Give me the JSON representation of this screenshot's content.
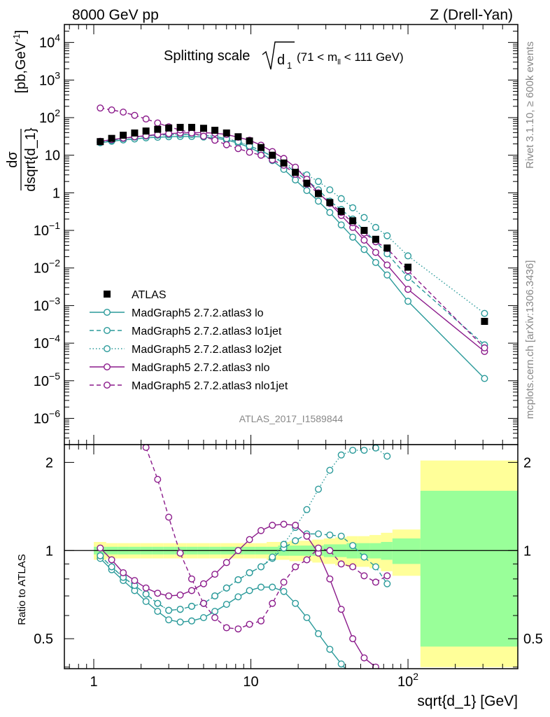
{
  "header": {
    "left": "8000 GeV pp",
    "right": "Z (Drell-Yan)"
  },
  "side_labels": {
    "rivet": "Rivet 3.1.10, ≥ 600k events",
    "mcplots": "mcplots.cern.ch [arXiv:1306.3436]"
  },
  "colors": {
    "teal": "#2a9a9a",
    "purple": "#8b1a8b",
    "data": "#000000",
    "band_yellow": "#ffff99",
    "band_green": "#99ff99",
    "watermark": "#999999"
  },
  "chart_data": [
    {
      "type": "scatter",
      "panel": "main",
      "title": "Splitting scale",
      "title_sqrt": "d",
      "title_sqrt_sub": "1",
      "title_range": "(71 < m",
      "title_range_sub": "ll",
      "title_range_end": " < 111 GeV)",
      "watermark": "ATLAS_2017_I1589844",
      "ylabel_num": "dσ",
      "ylabel_den": "dsqrt{d_1}",
      "ylabel_unit": "[pb,GeV",
      "ylabel_unit_sup": "-1",
      "ylabel_unit_end": "]",
      "xscale": "log",
      "yscale": "log",
      "xlim": [
        0.65,
        500
      ],
      "ylim": [
        2e-07,
        30000.0
      ],
      "ytick_labels": [
        {
          "base": "10",
          "exp": "4",
          "value": 10000.0
        },
        {
          "base": "10",
          "exp": "3",
          "value": 1000.0
        },
        {
          "base": "10",
          "exp": "2",
          "value": 100.0
        },
        {
          "base": "10",
          "exp": "",
          "value": 10
        },
        {
          "base": "1",
          "exp": "",
          "value": 1
        },
        {
          "base": "10",
          "exp": "−1",
          "value": 0.1
        },
        {
          "base": "10",
          "exp": "−2",
          "value": 0.01
        },
        {
          "base": "10",
          "exp": "−3",
          "value": 0.001
        },
        {
          "base": "10",
          "exp": "−4",
          "value": 0.0001
        },
        {
          "base": "10",
          "exp": "−5",
          "value": 1e-05
        },
        {
          "base": "10",
          "exp": "−6",
          "value": 1e-06
        }
      ],
      "legend_placement": "lower-left",
      "series": [
        {
          "name": "ATLAS",
          "style": "data",
          "x": [
            1.1,
            1.3,
            1.54,
            1.82,
            2.15,
            2.55,
            3.0,
            3.55,
            4.2,
            5.0,
            5.9,
            7.0,
            8.3,
            9.8,
            11.6,
            13.7,
            16.2,
            19.2,
            22.7,
            26.9,
            31.8,
            37.6,
            44.5,
            52.6,
            62.3,
            73.7,
            100,
            307
          ],
          "y": [
            23,
            28,
            34,
            39,
            44,
            49,
            53,
            55,
            55,
            52,
            46,
            39,
            31,
            24,
            16,
            10,
            6.2,
            3.5,
            1.8,
            0.95,
            0.55,
            0.32,
            0.18,
            0.1,
            0.058,
            0.034,
            0.0105,
            0.00038
          ]
        },
        {
          "name": "MadGraph5 2.7.2.atlas3 lo",
          "style": "solid",
          "color": "teal",
          "x": [
            1.1,
            1.3,
            1.54,
            1.82,
            2.15,
            2.55,
            3.0,
            3.55,
            4.2,
            5.0,
            5.9,
            7.0,
            8.3,
            9.8,
            11.6,
            13.7,
            16.2,
            19.2,
            22.7,
            26.9,
            31.8,
            37.6,
            44.5,
            52.6,
            62.3,
            73.7,
            100,
            307
          ],
          "y": [
            21.5,
            23.5,
            25.5,
            27,
            29,
            30,
            31,
            31.5,
            31.5,
            30.5,
            28.5,
            25.5,
            21,
            16,
            11.5,
            7.2,
            4.2,
            2.2,
            1.15,
            0.6,
            0.3,
            0.14,
            0.066,
            0.031,
            0.014,
            0.0065,
            0.0013,
            1.15e-05
          ]
        },
        {
          "name": "MadGraph5 2.7.2.atlas3 lo1jet",
          "style": "dashed",
          "color": "teal",
          "x": [
            1.1,
            1.3,
            1.54,
            1.82,
            2.15,
            2.55,
            3.0,
            3.55,
            4.2,
            5.0,
            5.9,
            7.0,
            8.3,
            9.8,
            11.6,
            13.7,
            16.2,
            19.2,
            22.7,
            26.9,
            31.8,
            37.6,
            44.5,
            52.6,
            62.3,
            73.7,
            100,
            307
          ],
          "y": [
            22,
            25,
            28,
            30.5,
            32.5,
            34,
            35,
            35.5,
            35.5,
            34,
            31.5,
            27.5,
            23,
            17.5,
            13.5,
            9,
            6.2,
            3.5,
            2.2,
            1.2,
            0.6,
            0.36,
            0.2,
            0.1,
            0.05,
            0.024,
            0.0056,
            9e-05
          ]
        },
        {
          "name": "MadGraph5 2.7.2.atlas3 lo2jet",
          "style": "dotted",
          "color": "teal",
          "x": [
            1.1,
            1.3,
            1.54,
            1.82,
            2.15,
            2.55,
            3.0,
            3.55,
            4.2,
            5.0,
            5.9,
            7.0,
            8.3,
            9.8,
            11.6,
            13.7,
            16.2,
            19.2,
            22.7,
            26.9,
            31.8,
            37.6,
            44.5,
            52.6,
            62.3,
            73.7,
            100,
            307
          ],
          "y": [
            22,
            25,
            28,
            30.5,
            32.5,
            34,
            35,
            35.5,
            35.5,
            34,
            31.5,
            27.5,
            23,
            17.5,
            13.5,
            9.5,
            6.5,
            4.2,
            3.0,
            2.0,
            1.2,
            0.7,
            0.4,
            0.22,
            0.12,
            0.072,
            0.021,
            0.00062
          ]
        },
        {
          "name": "MadGraph5 2.7.2.atlas3 nlo",
          "style": "solid",
          "color": "purple",
          "x": [
            1.1,
            1.3,
            1.54,
            1.82,
            2.15,
            2.55,
            3.0,
            3.55,
            4.2,
            5.0,
            5.9,
            7.0,
            8.3,
            9.8,
            11.6,
            13.7,
            16.2,
            19.2,
            22.7,
            26.9,
            31.8,
            37.6,
            44.5,
            52.6,
            62.3,
            73.7,
            100,
            307
          ],
          "y": [
            23.5,
            26,
            28.5,
            31,
            33,
            35.5,
            37.5,
            39,
            40,
            40,
            38.5,
            35.5,
            30,
            25,
            18.5,
            12.5,
            8.2,
            4.8,
            2.3,
            1.0,
            0.52,
            0.25,
            0.12,
            0.055,
            0.026,
            0.012,
            0.0027,
            6e-05
          ]
        },
        {
          "name": "MadGraph5 2.7.2.atlas3 nlo1jet",
          "style": "dashed",
          "color": "purple",
          "x": [
            1.1,
            1.3,
            1.54,
            1.82,
            2.15,
            2.55,
            3.0,
            3.55,
            4.2,
            5.0,
            5.9,
            7.0,
            8.3,
            9.8,
            11.6,
            13.7,
            16.2,
            19.2,
            22.7,
            26.9,
            31.8,
            37.6,
            44.5,
            52.6,
            62.3,
            73.7,
            100,
            307
          ],
          "y": [
            180,
            160,
            140,
            115,
            92,
            72,
            57,
            47,
            39,
            32,
            25,
            19,
            15,
            12,
            10,
            7.5,
            5.4,
            3.1,
            1.7,
            0.97,
            0.55,
            0.3,
            0.16,
            0.085,
            0.05,
            0.033,
            0.0085,
            7.5e-05
          ]
        }
      ]
    },
    {
      "type": "scatter",
      "panel": "ratio",
      "ylabel": "Ratio to ATLAS",
      "xlabel": "sqrt{d_1} [GeV]",
      "xscale": "log",
      "yscale": "log",
      "xlim": [
        0.65,
        500
      ],
      "ylim": [
        0.395,
        2.3
      ],
      "xtick_labels": [
        {
          "base": "1",
          "exp": "",
          "value": 1
        },
        {
          "base": "10",
          "exp": "",
          "value": 10
        },
        {
          "base": "10",
          "exp": "2",
          "value": 100
        }
      ],
      "ytick_labels": [
        {
          "label": "0.5",
          "value": 0.5
        },
        {
          "label": "1",
          "value": 1
        },
        {
          "label": "2",
          "value": 2
        }
      ],
      "reference_line": 1,
      "uncertainty_bands": {
        "edges": [
          1.0,
          1.2,
          1.42,
          1.68,
          1.98,
          2.35,
          2.78,
          3.28,
          3.88,
          4.6,
          5.45,
          6.45,
          7.62,
          9.0,
          10.65,
          12.6,
          14.9,
          17.6,
          20.8,
          24.6,
          29.1,
          34.4,
          40.7,
          48.1,
          56.9,
          67.3,
          79.6,
          120,
          500
        ],
        "yellow_lo": [
          0.93,
          0.94,
          0.94,
          0.94,
          0.94,
          0.94,
          0.94,
          0.94,
          0.94,
          0.94,
          0.94,
          0.94,
          0.94,
          0.94,
          0.94,
          0.93,
          0.93,
          0.92,
          0.92,
          0.91,
          0.9,
          0.89,
          0.88,
          0.88,
          0.87,
          0.85,
          0.82,
          0.4
        ],
        "yellow_hi": [
          1.07,
          1.06,
          1.06,
          1.06,
          1.06,
          1.06,
          1.06,
          1.06,
          1.06,
          1.06,
          1.06,
          1.06,
          1.06,
          1.06,
          1.06,
          1.07,
          1.07,
          1.08,
          1.08,
          1.09,
          1.1,
          1.11,
          1.12,
          1.12,
          1.13,
          1.15,
          1.18,
          2.03
        ],
        "green_lo": [
          0.97,
          0.97,
          0.97,
          0.97,
          0.97,
          0.97,
          0.97,
          0.97,
          0.97,
          0.97,
          0.97,
          0.97,
          0.97,
          0.97,
          0.97,
          0.97,
          0.96,
          0.96,
          0.96,
          0.96,
          0.95,
          0.95,
          0.94,
          0.94,
          0.94,
          0.93,
          0.9,
          0.47
        ],
        "green_hi": [
          1.03,
          1.03,
          1.03,
          1.03,
          1.03,
          1.03,
          1.03,
          1.03,
          1.03,
          1.03,
          1.03,
          1.03,
          1.03,
          1.03,
          1.03,
          1.03,
          1.04,
          1.04,
          1.04,
          1.04,
          1.05,
          1.05,
          1.06,
          1.06,
          1.06,
          1.07,
          1.1,
          1.6
        ]
      },
      "series": [
        {
          "name": "MadGraph5 2.7.2.atlas3 lo",
          "style": "solid",
          "color": "teal",
          "x": [
            1.1,
            1.3,
            1.54,
            1.82,
            2.15,
            2.55,
            3.0,
            3.55,
            4.2,
            5.0,
            5.9,
            7.0,
            8.3,
            9.8,
            11.6,
            13.7,
            16.2,
            19.2,
            22.7,
            26.9,
            31.8,
            37.6,
            44.5
          ],
          "y": [
            0.94,
            0.86,
            0.79,
            0.73,
            0.67,
            0.62,
            0.58,
            0.57,
            0.575,
            0.59,
            0.62,
            0.655,
            0.695,
            0.73,
            0.75,
            0.75,
            0.725,
            0.66,
            0.59,
            0.52,
            0.46,
            0.41,
            0.37
          ]
        },
        {
          "name": "MadGraph5 2.7.2.atlas3 lo1jet",
          "style": "dashed",
          "color": "teal",
          "x": [
            1.1,
            1.3,
            1.54,
            1.82,
            2.15,
            2.55,
            3.0,
            3.55,
            4.2,
            5.0,
            5.9,
            7.0,
            8.3,
            9.8,
            11.6,
            13.7,
            16.2,
            19.2,
            22.7,
            26.9,
            31.8,
            37.6,
            44.5,
            52.6,
            62.3,
            73.7
          ],
          "y": [
            0.96,
            0.88,
            0.81,
            0.76,
            0.71,
            0.66,
            0.625,
            0.63,
            0.645,
            0.66,
            0.7,
            0.745,
            0.795,
            0.84,
            0.88,
            0.94,
            1.02,
            1.08,
            1.14,
            1.14,
            1.13,
            1.12,
            1.04,
            0.95,
            0.88,
            0.77
          ]
        },
        {
          "name": "MadGraph5 2.7.2.atlas3 lo2jet",
          "style": "dotted",
          "color": "teal",
          "x": [
            1.1,
            1.3,
            1.54,
            1.82,
            2.15,
            2.55,
            3.0,
            3.55,
            4.2,
            5.0,
            5.9,
            7.0,
            8.3,
            9.8,
            11.6,
            13.7,
            16.2,
            19.2,
            22.7,
            26.9,
            31.8,
            37.6,
            44.5,
            52.6,
            62.3,
            73.7
          ],
          "y": [
            0.96,
            0.88,
            0.81,
            0.76,
            0.71,
            0.66,
            0.625,
            0.63,
            0.645,
            0.66,
            0.7,
            0.745,
            0.795,
            0.84,
            0.88,
            0.95,
            1.05,
            1.2,
            1.38,
            1.62,
            1.88,
            2.12,
            2.2,
            2.2,
            2.24,
            2.1
          ]
        },
        {
          "name": "MadGraph5 2.7.2.atlas3 nlo",
          "style": "solid",
          "color": "purple",
          "x": [
            1.1,
            1.3,
            1.54,
            1.82,
            2.15,
            2.55,
            3.0,
            3.55,
            4.2,
            5.0,
            5.9,
            7.0,
            8.3,
            9.8,
            11.6,
            13.7,
            16.2,
            19.2,
            22.7,
            26.9,
            31.8,
            37.6,
            44.5,
            52.6,
            62.3
          ],
          "y": [
            1.02,
            0.93,
            0.84,
            0.79,
            0.745,
            0.715,
            0.7,
            0.705,
            0.73,
            0.77,
            0.83,
            0.91,
            1.0,
            1.09,
            1.17,
            1.22,
            1.23,
            1.22,
            1.12,
            0.98,
            0.8,
            0.63,
            0.5,
            0.43,
            0.4
          ]
        },
        {
          "name": "MadGraph5 2.7.2.atlas3 nlo1jet",
          "style": "dashed",
          "color": "purple",
          "x": [
            2.15,
            2.55,
            3.0,
            3.55,
            4.2,
            5.0,
            5.9,
            7.0,
            8.3,
            9.8,
            11.6,
            13.7,
            16.2,
            19.2,
            22.7,
            26.9,
            31.8,
            37.6,
            44.5,
            52.6,
            62.3,
            73.7
          ],
          "y": [
            2.25,
            1.75,
            1.3,
            0.98,
            0.8,
            0.66,
            0.59,
            0.545,
            0.54,
            0.56,
            0.575,
            0.66,
            0.78,
            0.88,
            0.93,
            1.02,
            1.0,
            0.9,
            0.88,
            0.82,
            0.78,
            0.82
          ]
        }
      ]
    }
  ]
}
